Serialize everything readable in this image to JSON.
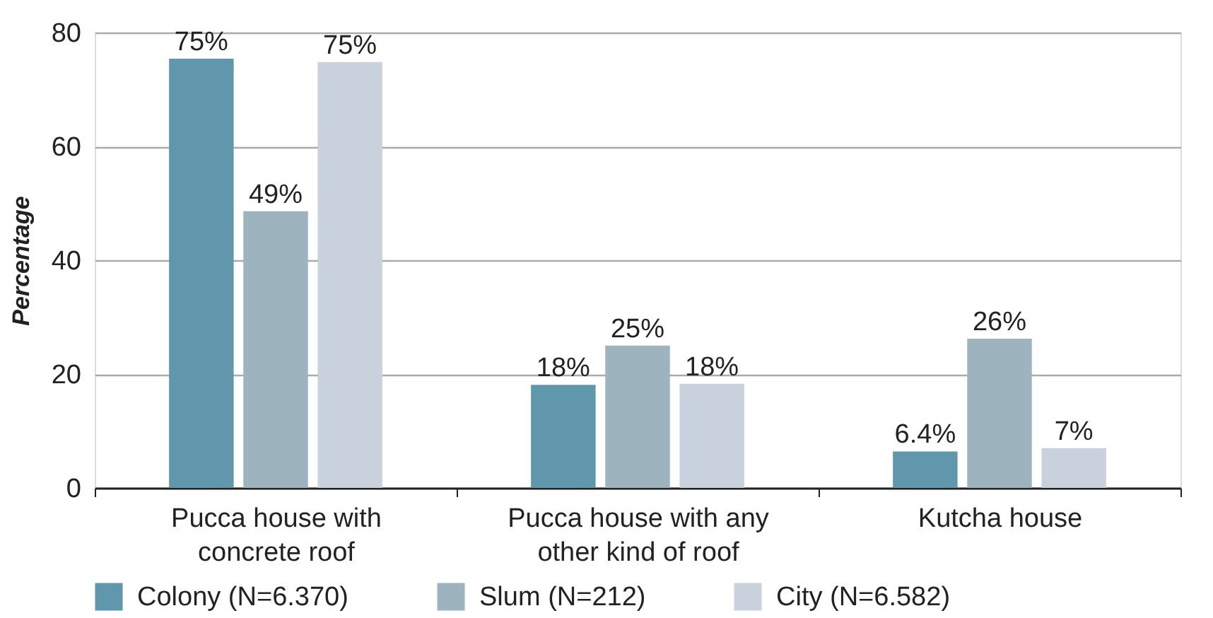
{
  "chart_data": {
    "type": "bar",
    "categories": [
      "Pucca house with concrete roof",
      "Pucca house with any other kind of roof",
      "Kutcha house"
    ],
    "ylabel": "Percentage",
    "ylim": [
      0,
      80
    ],
    "yticks": [
      0,
      20,
      40,
      60,
      80
    ],
    "grid": "y",
    "legend": "bottom",
    "series": [
      {
        "name": "Colony (N=6.370)",
        "color": "#6097ad",
        "values": [
          75.4,
          18.1,
          6.4
        ],
        "value_labels": [
          "75%",
          "18%",
          "6.4%"
        ]
      },
      {
        "name": "Slum (N=212)",
        "color": "#9db3bd",
        "values": [
          48.6,
          25.0,
          26.2
        ],
        "value_labels": [
          "49%",
          "25%",
          "26%"
        ]
      },
      {
        "name": "City (N=6.582)",
        "color": "#c9d1dc",
        "values": [
          74.8,
          18.3,
          7.0
        ],
        "value_labels": [
          "75%",
          "18%",
          "7%"
        ]
      }
    ]
  }
}
